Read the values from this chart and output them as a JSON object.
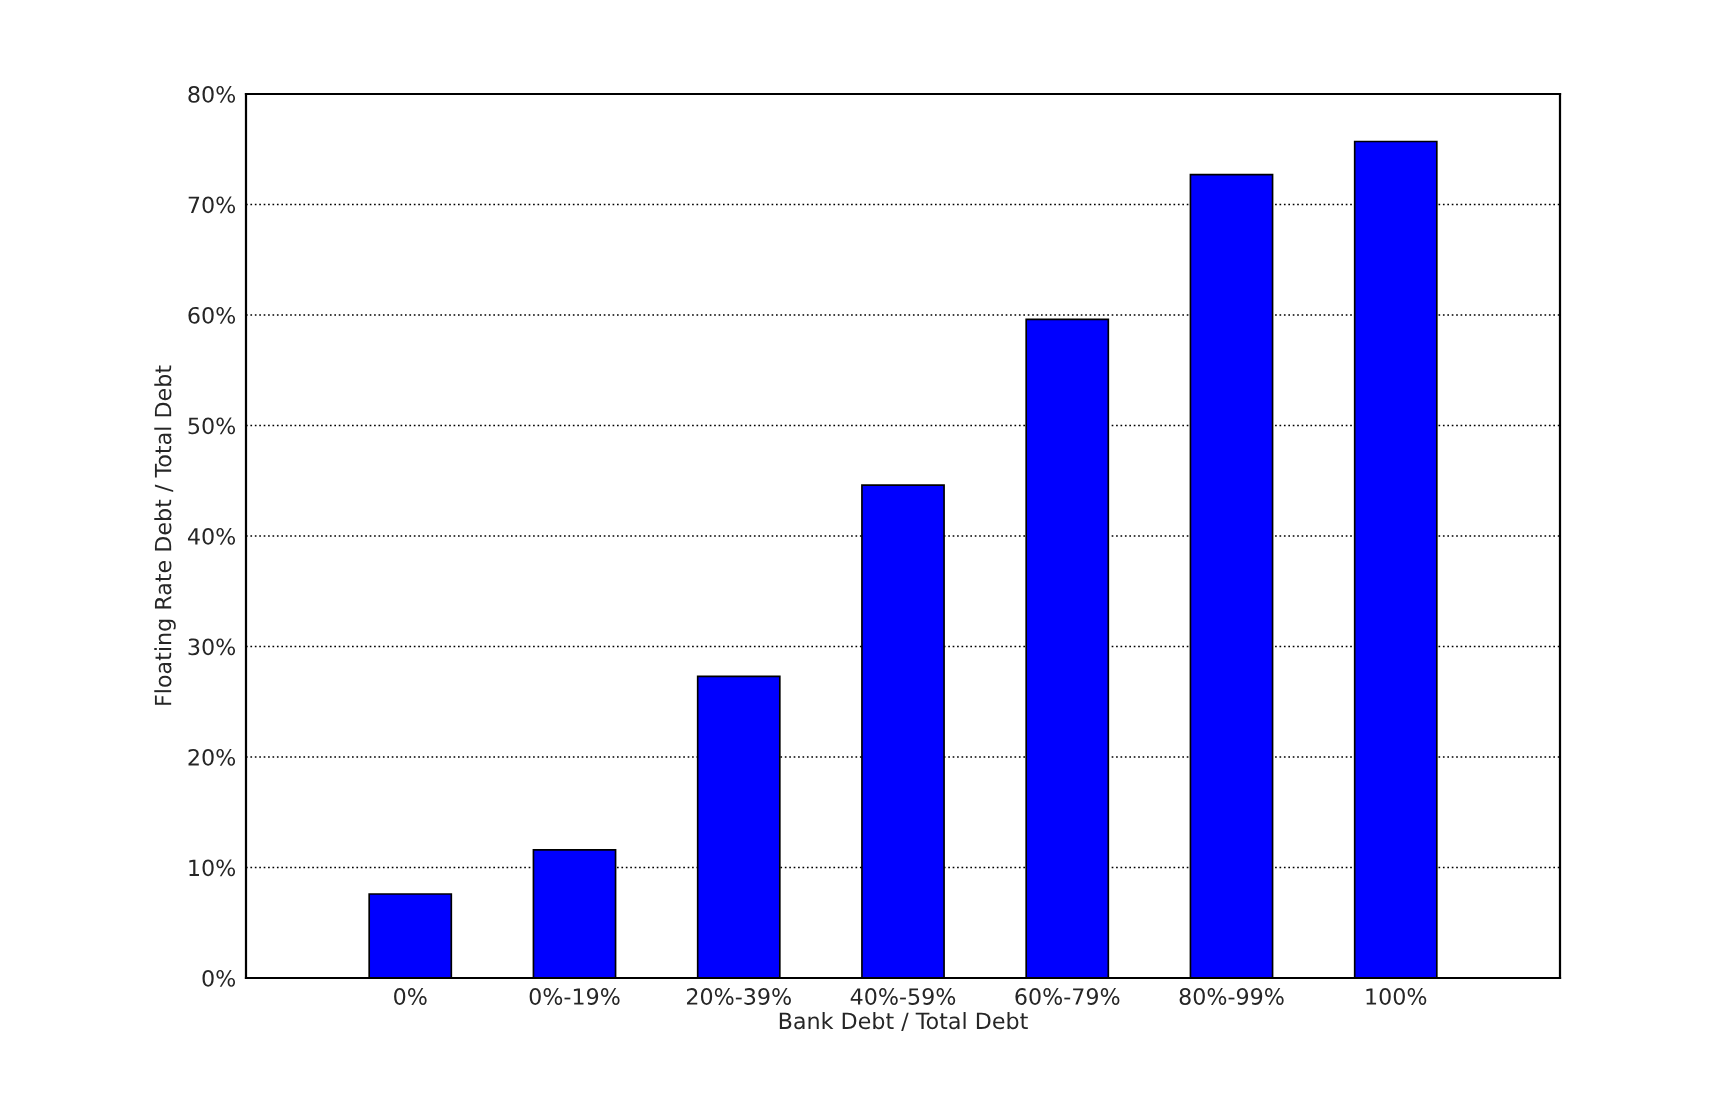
{
  "chart_data": {
    "type": "bar",
    "xlabel": "Bank Debt / Total Debt",
    "ylabel": "Floating Rate Debt / Total Debt",
    "categories": [
      "0%",
      "0%-19%",
      "20%-39%",
      "40%-59%",
      "60%-79%",
      "80%-99%",
      "100%"
    ],
    "values": [
      7.6,
      11.6,
      27.3,
      44.6,
      59.6,
      72.7,
      75.7
    ],
    "color": "#0000ff",
    "ylim": [
      0,
      80
    ],
    "yticks": [
      {
        "value": 0,
        "label": "0%"
      },
      {
        "value": 10,
        "label": "10%"
      },
      {
        "value": 20,
        "label": "20%"
      },
      {
        "value": 30,
        "label": "30%"
      },
      {
        "value": 40,
        "label": "40%"
      },
      {
        "value": 50,
        "label": "50%"
      },
      {
        "value": 60,
        "label": "60%"
      },
      {
        "value": 70,
        "label": "70%"
      },
      {
        "value": 80,
        "label": "80%"
      }
    ],
    "grid": "y"
  }
}
